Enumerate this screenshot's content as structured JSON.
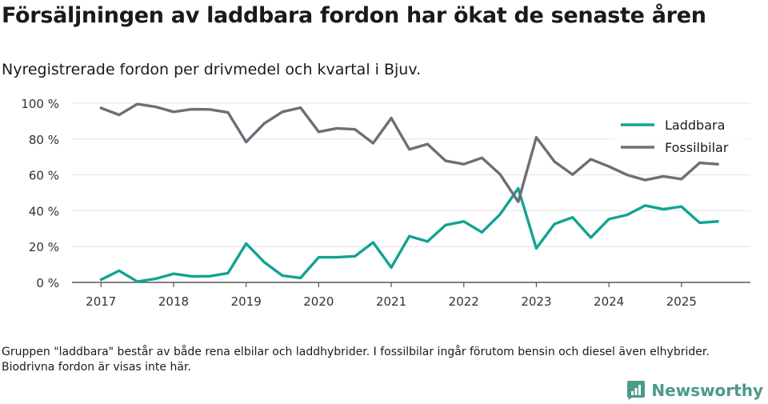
{
  "chart_data": {
    "type": "line",
    "title": "Försäljningen av laddbara fordon har ökat de senaste åren",
    "subtitle": "Nyregistrerade fordon per drivmedel och kvartal i Bjuv.",
    "xlabel": "",
    "ylabel": "",
    "ylim": [
      0,
      100
    ],
    "yticks": [
      0,
      20,
      40,
      60,
      80,
      100
    ],
    "ytick_labels": [
      "0 %",
      "20 %",
      "40 %",
      "60 %",
      "80 %",
      "100 %"
    ],
    "xticks": [
      2017,
      2018,
      2019,
      2020,
      2021,
      2022,
      2023,
      2024,
      2025
    ],
    "xtick_labels": [
      "2017",
      "2018",
      "2019",
      "2020",
      "2021",
      "2022",
      "2023",
      "2024",
      "2025"
    ],
    "xlim": [
      2016.6,
      2025.95
    ],
    "x": [
      2017.0,
      2017.25,
      2017.5,
      2017.75,
      2018.0,
      2018.25,
      2018.5,
      2018.75,
      2019.0,
      2019.25,
      2019.5,
      2019.75,
      2020.0,
      2020.25,
      2020.5,
      2020.75,
      2021.0,
      2021.25,
      2021.5,
      2021.75,
      2022.0,
      2022.25,
      2022.5,
      2022.75,
      2023.0,
      2023.25,
      2023.5,
      2023.75,
      2024.0,
      2024.25,
      2024.5,
      2024.75,
      2025.0,
      2025.25,
      2025.5
    ],
    "series": [
      {
        "name": "Laddbara",
        "color": "#12a394",
        "values": [
          1.5,
          6.5,
          0.5,
          2.0,
          4.8,
          3.4,
          3.5,
          5.2,
          21.7,
          11.3,
          3.8,
          2.5,
          14.0,
          14.0,
          14.6,
          22.3,
          8.3,
          25.8,
          22.8,
          32.0,
          34.0,
          28.0,
          38.0,
          52.5,
          19.0,
          32.6,
          36.3,
          25.0,
          35.3,
          37.7,
          42.9,
          40.8,
          42.3,
          33.3,
          34.0
        ]
      },
      {
        "name": "Fossilbilar",
        "color": "#6f6e78",
        "values": [
          97.3,
          93.5,
          99.5,
          98.0,
          95.2,
          96.6,
          96.5,
          94.8,
          78.3,
          88.7,
          95.2,
          97.5,
          84.0,
          86.0,
          85.4,
          77.7,
          91.7,
          74.2,
          77.2,
          67.8,
          66.0,
          69.5,
          60.3,
          45.0,
          81.0,
          67.4,
          60.2,
          68.7,
          64.7,
          60.0,
          57.1,
          59.2,
          57.7,
          66.7,
          66.0
        ]
      }
    ],
    "legend": {
      "position": "top-right",
      "entries": [
        "Laddbara",
        "Fossilbilar"
      ]
    },
    "grid": true
  },
  "footnote": "Gruppen \"laddbara\" består av både rena elbilar och laddhybrider. I fossilbilar ingår förutom bensin och diesel även elhybrider. Biodrivna fordon är visas inte här.",
  "brand": {
    "name": "Newsworthy",
    "logo_icon": "newsworthy-logo-icon",
    "color": "#4a9a8a"
  }
}
